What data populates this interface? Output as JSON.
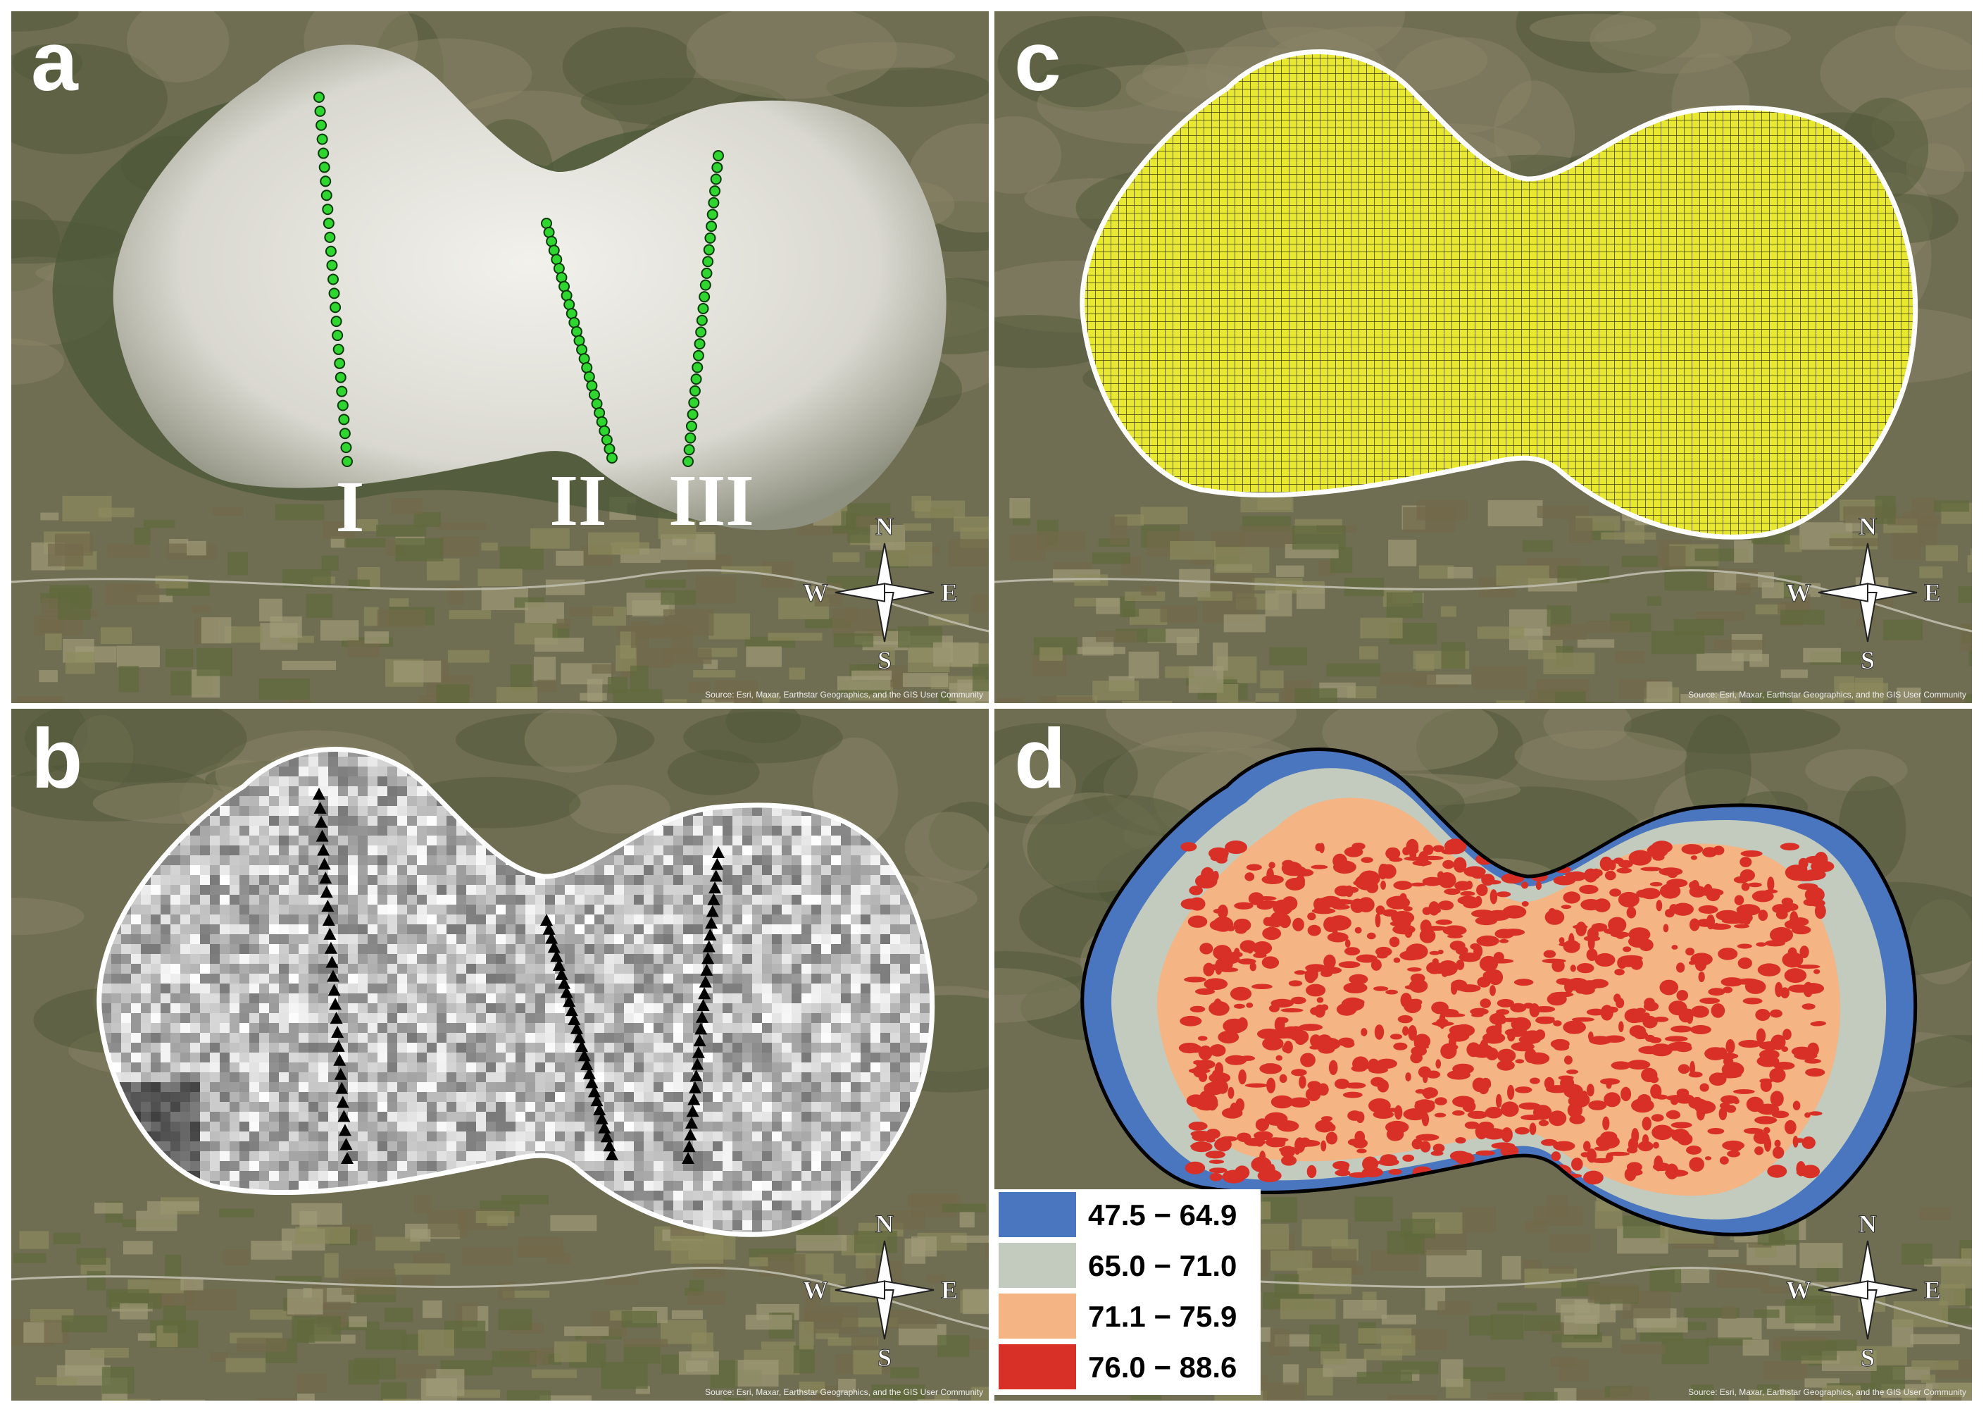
{
  "panels": [
    {
      "label": "a",
      "transect_labels": [
        "I",
        "II",
        "III"
      ]
    },
    {
      "label": "b"
    },
    {
      "label": "c"
    },
    {
      "label": "d",
      "legend": [
        {
          "label": "47.5 − 64.9",
          "color": "#4a76c0"
        },
        {
          "label": "65.0 − 71.0",
          "color": "#c2cbbd"
        },
        {
          "label": "71.1 − 75.9",
          "color": "#f4b483"
        },
        {
          "label": "76.0 − 88.6",
          "color": "#d83027"
        }
      ]
    }
  ],
  "compass": {
    "n": "N",
    "e": "E",
    "s": "S",
    "w": "W"
  },
  "attribution": "Source: Esri, Maxar, Earthstar Geographics, and the GIS User Community"
}
